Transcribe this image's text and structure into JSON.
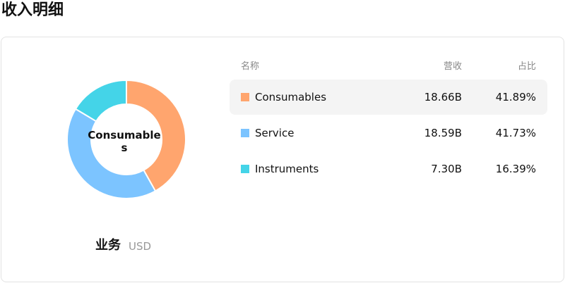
{
  "title": "收入明细",
  "chart_data": {
    "type": "pie",
    "donut": true,
    "categories": [
      "Consumables",
      "Service",
      "Instruments"
    ],
    "values": [
      41.89,
      41.73,
      16.39
    ],
    "value_labels": [
      "41.89%",
      "41.73%",
      "16.39%"
    ],
    "colors": [
      "#ffa56e",
      "#7cc4ff",
      "#44d4e8"
    ],
    "selected": 0,
    "caption": "业务",
    "unit": "USD"
  },
  "table": {
    "columns": [
      "名称",
      "营收",
      "占比"
    ],
    "revenues": [
      "18.66B",
      "18.59B",
      "7.30B"
    ]
  }
}
